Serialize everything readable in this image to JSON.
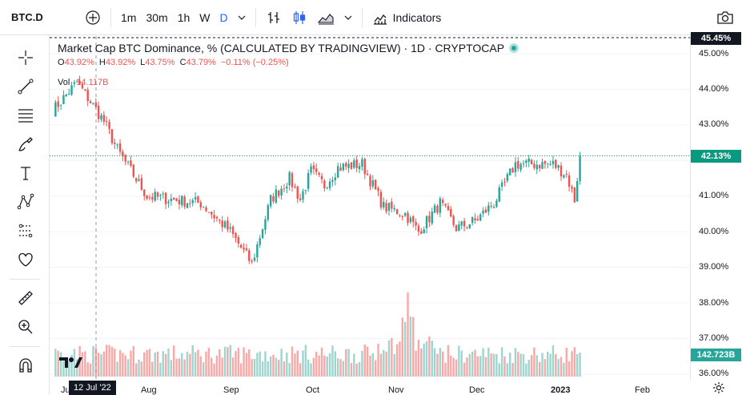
{
  "toolbar": {
    "symbol": "BTC.D",
    "timeframes": [
      "1m",
      "30m",
      "1h",
      "W",
      "D"
    ],
    "active_timeframe": "D",
    "indicators_label": "Indicators"
  },
  "legend": {
    "title": "Market Cap BTC Dominance, % (CALCULATED BY TRADINGVIEW) · 1D · CRYPTOCAP",
    "open_label": "O",
    "open": "43.92%",
    "high_label": "H",
    "high": "43.92%",
    "low_label": "L",
    "low": "43.75%",
    "close_label": "C",
    "close": "43.79%",
    "change": "−0.11% (−0.25%)",
    "vol_label": "Vol",
    "vol_value": "14.117B"
  },
  "price_axis": {
    "labels": [
      "45.00%",
      "44.00%",
      "43.00%",
      "42.00%",
      "41.00%",
      "40.00%",
      "39.00%",
      "38.00%",
      "37.00%",
      "36.00%"
    ],
    "top_tag": "45.45%",
    "price_tag": "42.13%",
    "volume_tag": "142.723B"
  },
  "time_axis": {
    "labels": [
      "Ju",
      "Aug",
      "Sep",
      "Oct",
      "Nov",
      "Dec",
      "2023",
      "Feb"
    ],
    "crosshair_date": "12 Jul '22"
  },
  "colors": {
    "up": "#26a69a",
    "down": "#ef5350",
    "up_vol": "#9fd5cf",
    "down_vol": "#f7a9a7",
    "accent": "#2962ff"
  },
  "chart_data": {
    "type": "candlestick",
    "y_unit": "%",
    "ylim": [
      36.0,
      45.4
    ],
    "last_price": 42.13,
    "anchors": [
      {
        "date": "2022-07-01",
        "value": 43.4
      },
      {
        "date": "2022-07-10",
        "value": 44.2
      },
      {
        "date": "2022-07-20",
        "value": 43.1
      },
      {
        "date": "2022-07-25",
        "value": 42.3
      },
      {
        "date": "2022-08-05",
        "value": 41.0
      },
      {
        "date": "2022-08-25",
        "value": 40.8
      },
      {
        "date": "2022-09-05",
        "value": 40.0
      },
      {
        "date": "2022-09-13",
        "value": 39.1
      },
      {
        "date": "2022-09-20",
        "value": 40.9
      },
      {
        "date": "2022-09-27",
        "value": 41.5
      },
      {
        "date": "2022-10-01",
        "value": 40.9
      },
      {
        "date": "2022-10-05",
        "value": 41.7
      },
      {
        "date": "2022-10-10",
        "value": 41.3
      },
      {
        "date": "2022-10-15",
        "value": 41.8
      },
      {
        "date": "2022-10-24",
        "value": 41.9
      },
      {
        "date": "2022-11-01",
        "value": 40.7
      },
      {
        "date": "2022-11-09",
        "value": 40.5
      },
      {
        "date": "2022-11-14",
        "value": 40.0
      },
      {
        "date": "2022-11-22",
        "value": 40.8
      },
      {
        "date": "2022-11-28",
        "value": 40.1
      },
      {
        "date": "2022-12-05",
        "value": 40.3
      },
      {
        "date": "2022-12-12",
        "value": 40.8
      },
      {
        "date": "2022-12-20",
        "value": 41.9
      },
      {
        "date": "2022-12-28",
        "value": 41.9
      },
      {
        "date": "2023-01-03",
        "value": 41.9
      },
      {
        "date": "2023-01-08",
        "value": 41.6
      },
      {
        "date": "2023-01-11",
        "value": 40.9
      },
      {
        "date": "2023-01-13",
        "value": 42.13
      }
    ],
    "volume_spike_date": "2022-11-10"
  }
}
